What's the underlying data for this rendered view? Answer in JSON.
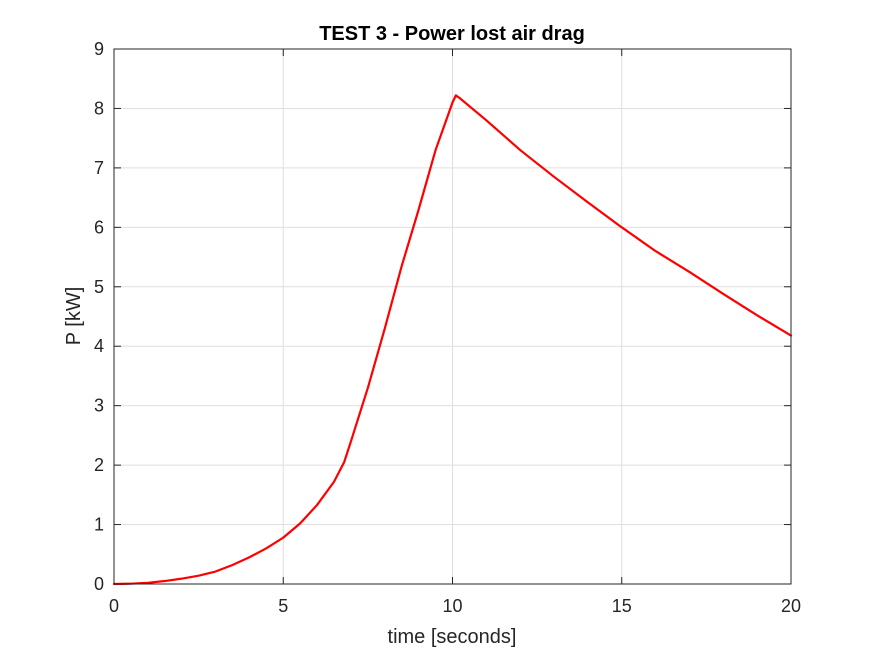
{
  "chart_data": {
    "type": "line",
    "title": "TEST 3 - Power lost air drag",
    "xlabel": "time [seconds]",
    "ylabel": "P [kW]",
    "xlim": [
      0,
      20
    ],
    "ylim": [
      0,
      9
    ],
    "xticks": [
      0,
      5,
      10,
      15,
      20
    ],
    "yticks": [
      0,
      1,
      2,
      3,
      4,
      5,
      6,
      7,
      8,
      9
    ],
    "grid": true,
    "series": [
      {
        "color": "#ff0000",
        "x": [
          0,
          0.5,
          1,
          1.5,
          2,
          2.5,
          3,
          3.5,
          4,
          4.5,
          5,
          5.5,
          6,
          6.5,
          6.8,
          7,
          7.5,
          8,
          8.5,
          9,
          9.5,
          10,
          10.1,
          10.2,
          11,
          12,
          13,
          14,
          15,
          16,
          17,
          18,
          19,
          20
        ],
        "y": [
          0,
          0.005,
          0.02,
          0.05,
          0.09,
          0.14,
          0.21,
          0.32,
          0.45,
          0.6,
          0.78,
          1.02,
          1.33,
          1.72,
          2.05,
          2.4,
          3.3,
          4.3,
          5.35,
          6.3,
          7.3,
          8.1,
          8.22,
          8.18,
          7.8,
          7.3,
          6.85,
          6.42,
          6.0,
          5.6,
          5.25,
          4.88,
          4.52,
          4.18
        ]
      }
    ]
  }
}
